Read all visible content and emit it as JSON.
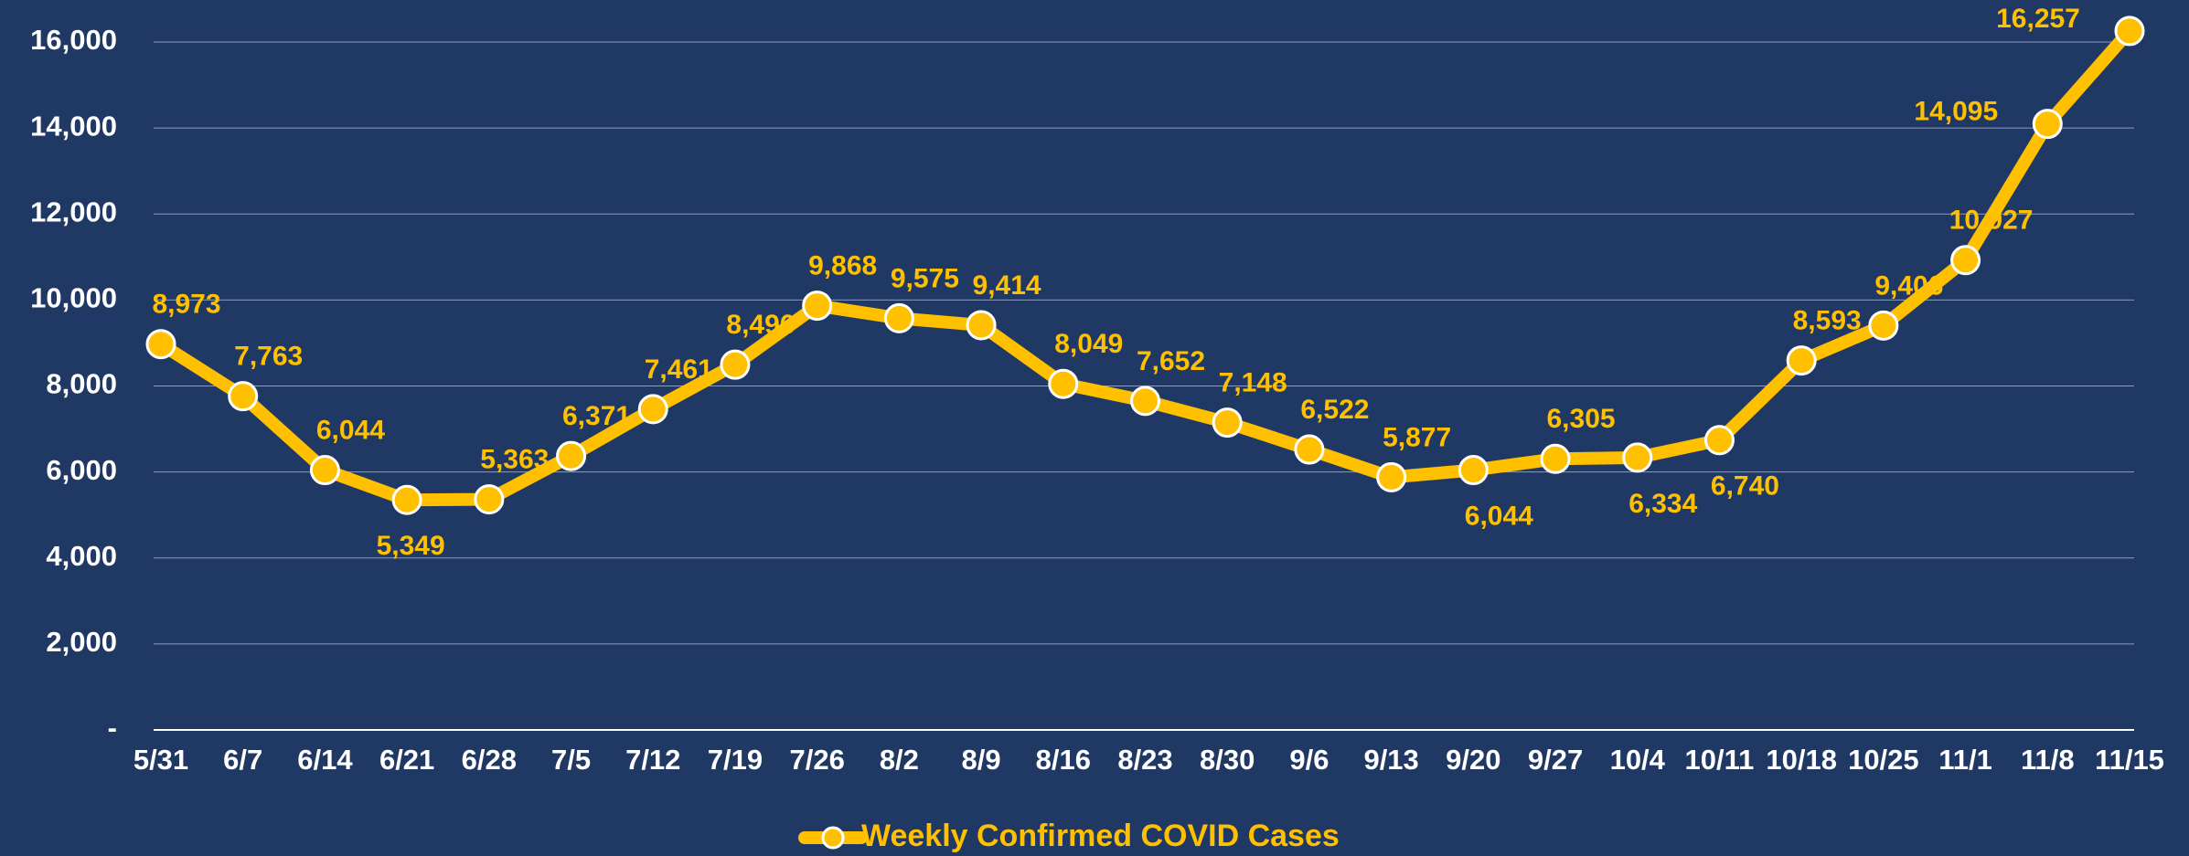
{
  "chart_data": {
    "type": "line",
    "categories": [
      "5/31",
      "6/7",
      "6/14",
      "6/21",
      "6/28",
      "7/5",
      "7/12",
      "7/19",
      "7/26",
      "8/2",
      "8/9",
      "8/16",
      "8/23",
      "8/30",
      "9/6",
      "9/13",
      "9/20",
      "9/27",
      "10/4",
      "10/11",
      "10/18",
      "10/25",
      "11/1",
      "11/8",
      "11/15"
    ],
    "series": [
      {
        "name": "Weekly Confirmed COVID Cases",
        "color": "#ffc000",
        "values": [
          8973,
          7763,
          6044,
          5349,
          5363,
          6371,
          7461,
          8496,
          9868,
          9575,
          9414,
          8049,
          7652,
          7148,
          6522,
          5877,
          6044,
          6305,
          6334,
          6740,
          8593,
          9406,
          10927,
          14095,
          16257
        ],
        "value_labels": [
          "8,973",
          "7,763",
          "6,044",
          "5,349",
          "5,363",
          "6,371",
          "7,461",
          "8,496",
          "9,868",
          "9,575",
          "9,414",
          "8,049",
          "7,652",
          "7,148",
          "6,522",
          "5,877",
          "6,044",
          "6,305",
          "6,334",
          "6,740",
          "8,593",
          "9,406",
          "10,927",
          "14,095",
          "16,257"
        ]
      }
    ],
    "ylim": [
      0,
      16000
    ],
    "yticks": [
      {
        "value": 0,
        "label": "-"
      },
      {
        "value": 2000,
        "label": "2,000"
      },
      {
        "value": 4000,
        "label": "4,000"
      },
      {
        "value": 6000,
        "label": "6,000"
      },
      {
        "value": 8000,
        "label": "8,000"
      },
      {
        "value": 10000,
        "label": "10,000"
      },
      {
        "value": 12000,
        "label": "12,000"
      },
      {
        "value": 14000,
        "label": "14,000"
      },
      {
        "value": 16000,
        "label": "16,000"
      }
    ],
    "grid": true,
    "legend": "bottom"
  }
}
